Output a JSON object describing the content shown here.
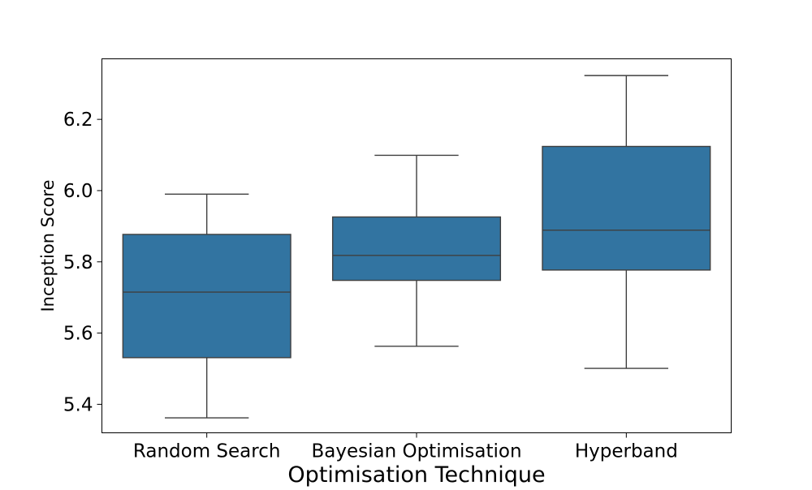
{
  "chart_data": {
    "type": "boxplot",
    "title": "",
    "xlabel": "Optimisation Technique",
    "ylabel": "Inception Score",
    "ylim": [
      5.32,
      6.37
    ],
    "yticks": [
      5.4,
      5.6,
      5.8,
      6.0,
      6.2
    ],
    "ytick_labels": [
      "5.4",
      "5.6",
      "5.8",
      "6.0",
      "6.2"
    ],
    "grid": false,
    "legend": "none",
    "box_color": "#3274a1",
    "line_color": "#3f3f3f",
    "categories": [
      "Random Search",
      "Bayesian Optimisation",
      "Hyperband"
    ],
    "boxes": [
      {
        "category": "Random Search",
        "whisker_low": 5.362,
        "q1": 5.531,
        "median": 5.715,
        "q3": 5.877,
        "whisker_high": 5.99
      },
      {
        "category": "Bayesian Optimisation",
        "whisker_low": 5.563,
        "q1": 5.748,
        "median": 5.818,
        "q3": 5.926,
        "whisker_high": 6.099
      },
      {
        "category": "Hyperband",
        "whisker_low": 5.501,
        "q1": 5.777,
        "median": 5.889,
        "q3": 6.124,
        "whisker_high": 6.323
      }
    ]
  }
}
